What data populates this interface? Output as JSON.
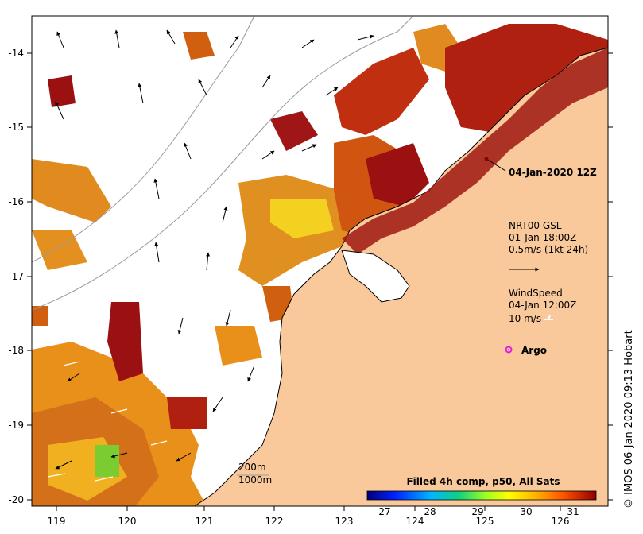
{
  "map": {
    "axes": {
      "lon_ticks": [
        "119",
        "120",
        "121",
        "122",
        "123",
        "124",
        "125",
        "126"
      ],
      "lat_ticks": [
        "-14",
        "-15",
        "-16",
        "-17",
        "-18",
        "-19",
        "-20"
      ],
      "lon_range": [
        118.65,
        126.75
      ],
      "lat_range": [
        -20.1,
        -13.5
      ]
    },
    "date_label": "04-Jan-2020 12Z",
    "current_legend": {
      "line1": "NRT00 GSL",
      "line2": "01-Jan 18:00Z",
      "line3": "0.5m/s (1kt 24h)"
    },
    "wind_legend": {
      "line1": "WindSpeed",
      "line2": "04-Jan 12:00Z",
      "line3": "10 m/s"
    },
    "argo_label": "Argo",
    "depth_legend": {
      "d1": "200m",
      "d2": "1000m"
    },
    "colorbar": {
      "title": "Filled 4h comp, p50, All Sats",
      "ticks": [
        "27",
        "28",
        "29",
        "30",
        "31"
      ],
      "range": [
        26.5,
        31.5
      ]
    },
    "credit": "© IMOS 06-Jan-2020 09:13 Hobart",
    "colors": {
      "land": "#F9C89B",
      "coast": "#000000",
      "bathymetry": "#9a9a9a",
      "argo": "#E020E0"
    }
  }
}
